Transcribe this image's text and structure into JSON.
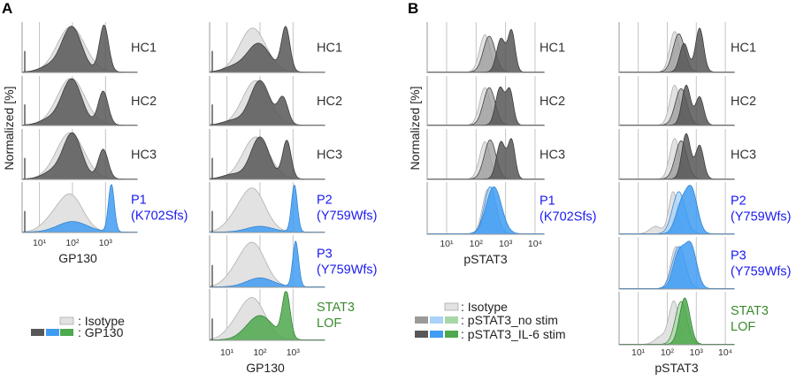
{
  "figure": {
    "panel_letters": [
      "A",
      "B"
    ],
    "ylabel": "Normalized [%]",
    "colors": {
      "isotype": "#e2e2e2",
      "isotype_line": "#a8a8a8",
      "hc_stim": "#575757",
      "hc_nostim": "#9a9a9a",
      "patient_stim": "#3f9cf2",
      "patient_nostim": "#a9d2f8",
      "lof_stim": "#4ea84e",
      "lof_nostim": "#a9d7a6",
      "label_hc": "#333333",
      "label_patient": "#1a1aee",
      "label_lof": "#3b8a2e"
    }
  },
  "legend_a": {
    "items": [
      {
        "text": ": Isotype",
        "swatches": [
          "isotype"
        ]
      },
      {
        "text": ": GP130",
        "swatches": [
          "hc_stim",
          "patient_stim",
          "lof_stim"
        ]
      }
    ]
  },
  "legend_b": {
    "items": [
      {
        "text": ": Isotype",
        "swatches": [
          "isotype"
        ]
      },
      {
        "text": ": pSTAT3_no stim",
        "swatches": [
          "hc_nostim",
          "patient_nostim",
          "lof_nostim"
        ]
      },
      {
        "text": ": pSTAT3_IL-6 stim",
        "swatches": [
          "hc_stim",
          "patient_stim",
          "lof_stim"
        ]
      }
    ]
  },
  "chart_data": [
    {
      "type": "area",
      "panel": "A",
      "xlabel": "GP130",
      "ylabel": "Normalized [%]",
      "xscale": "log",
      "xlim": [
        3,
        9000
      ],
      "xticks": [
        10,
        100,
        1000
      ],
      "xtick_labels": [
        "10¹",
        "10²",
        "10³"
      ],
      "grid": true,
      "rows": [
        {
          "label": [
            "HC1"
          ],
          "label_color": "label_hc",
          "series": [
            {
              "kind": "isotype",
              "peaks": [
                [
                  90,
                  0.95,
                  0.42
                ]
              ]
            },
            {
              "kind": "hc_stim",
              "peaks": [
                [
                  95,
                  0.95,
                  0.3
                ],
                [
                  900,
                  0.98,
                  0.14
                ],
                [
                  20,
                  0.12,
                  0.3
                ]
              ]
            }
          ]
        },
        {
          "label": [
            "HC2"
          ],
          "label_color": "label_hc",
          "series": [
            {
              "kind": "isotype",
              "peaks": [
                [
                  90,
                  1.0,
                  0.42
                ]
              ]
            },
            {
              "kind": "hc_stim",
              "peaks": [
                [
                  95,
                  0.98,
                  0.3
                ],
                [
                  850,
                  0.72,
                  0.15
                ],
                [
                  20,
                  0.12,
                  0.3
                ]
              ]
            }
          ]
        },
        {
          "label": [
            "HC3"
          ],
          "label_color": "label_hc",
          "series": [
            {
              "kind": "isotype",
              "peaks": [
                [
                  85,
                  0.97,
                  0.42
                ]
              ]
            },
            {
              "kind": "hc_stim",
              "peaks": [
                [
                  100,
                  0.95,
                  0.28
                ],
                [
                  850,
                  0.62,
                  0.15
                ],
                [
                  25,
                  0.15,
                  0.3
                ]
              ]
            }
          ]
        },
        {
          "label": [
            "P1",
            "(K702Sfs)"
          ],
          "label_color": "label_patient",
          "series": [
            {
              "kind": "isotype",
              "peaks": [
                [
                  85,
                  0.78,
                  0.38
                ],
                [
                  20,
                  0.15,
                  0.3
                ]
              ]
            },
            {
              "kind": "patient_stim",
              "peaks": [
                [
                  100,
                  0.22,
                  0.45
                ],
                [
                  1500,
                  1.0,
                  0.09
                ]
              ]
            }
          ]
        }
      ]
    },
    {
      "type": "area",
      "panel": "A",
      "xlabel": "GP130",
      "ylabel": "Normalized [%]",
      "xscale": "log",
      "xlim": [
        3,
        9000
      ],
      "xticks": [
        10,
        100,
        1000
      ],
      "xtick_labels": [
        "10¹",
        "10²",
        "10³"
      ],
      "grid": true,
      "rows": [
        {
          "label": [
            "HC1"
          ],
          "label_color": "label_hc",
          "series": [
            {
              "kind": "isotype",
              "peaks": [
                [
                  60,
                  0.92,
                  0.4
                ]
              ]
            },
            {
              "kind": "hc_stim",
              "peaks": [
                [
                  90,
                  0.6,
                  0.35
                ],
                [
                  600,
                  0.92,
                  0.13
                ],
                [
                  15,
                  0.1,
                  0.3
                ]
              ]
            }
          ]
        },
        {
          "label": [
            "HC2"
          ],
          "label_color": "label_hc",
          "series": [
            {
              "kind": "isotype",
              "peaks": [
                [
                  75,
                  0.95,
                  0.4
                ]
              ]
            },
            {
              "kind": "hc_stim",
              "peaks": [
                [
                  100,
                  0.95,
                  0.3
                ],
                [
                  500,
                  0.55,
                  0.15
                ],
                [
                  15,
                  0.1,
                  0.3
                ]
              ]
            }
          ]
        },
        {
          "label": [
            "HC3"
          ],
          "label_color": "label_hc",
          "series": [
            {
              "kind": "isotype",
              "peaks": [
                [
                  75,
                  0.88,
                  0.4
                ]
              ]
            },
            {
              "kind": "hc_stim",
              "peaks": [
                [
                  100,
                  0.88,
                  0.28
                ],
                [
                  650,
                  0.8,
                  0.13
                ],
                [
                  15,
                  0.1,
                  0.3
                ]
              ]
            }
          ]
        },
        {
          "label": [
            "P2",
            "(Y759Wfs)"
          ],
          "label_color": "label_patient",
          "series": [
            {
              "kind": "isotype",
              "peaks": [
                [
                  60,
                  0.9,
                  0.38
                ],
                [
                  15,
                  0.15,
                  0.3
                ]
              ]
            },
            {
              "kind": "patient_stim",
              "peaks": [
                [
                  100,
                  0.12,
                  0.4
                ],
                [
                  1100,
                  0.98,
                  0.09
                ]
              ]
            }
          ]
        },
        {
          "label": [
            "P3",
            "(Y759Wfs)"
          ],
          "label_color": "label_patient",
          "series": [
            {
              "kind": "isotype",
              "peaks": [
                [
                  60,
                  0.88,
                  0.38
                ],
                [
                  15,
                  0.15,
                  0.3
                ]
              ]
            },
            {
              "kind": "patient_stim",
              "peaks": [
                [
                  100,
                  0.18,
                  0.4
                ],
                [
                  1200,
                  0.92,
                  0.09
                ]
              ]
            }
          ]
        },
        {
          "label": [
            "STAT3",
            "LOF"
          ],
          "label_color": "label_lof",
          "series": [
            {
              "kind": "isotype",
              "peaks": [
                [
                  60,
                  0.85,
                  0.38
                ],
                [
                  15,
                  0.15,
                  0.3
                ]
              ]
            },
            {
              "kind": "lof_stim",
              "peaks": [
                [
                  100,
                  0.5,
                  0.4
                ],
                [
                  620,
                  0.95,
                  0.12
                ]
              ]
            }
          ]
        }
      ]
    },
    {
      "type": "area",
      "panel": "B",
      "xlabel": "pSTAT3",
      "ylabel": "Normalized [%]",
      "xscale": "log",
      "xlim": [
        2.2,
        20000
      ],
      "xticks": [
        10,
        100,
        1000,
        10000
      ],
      "xtick_labels": [
        "10¹",
        "10²",
        "10³",
        "10⁴"
      ],
      "grid": true,
      "rows": [
        {
          "label": [
            "HC1"
          ],
          "label_color": "label_hc",
          "series": [
            {
              "kind": "isotype",
              "peaks": [
                [
                  200,
                  0.78,
                  0.18
                ]
              ]
            },
            {
              "kind": "hc_nostim",
              "peaks": [
                [
                  280,
                  0.75,
                  0.2
                ]
              ]
            },
            {
              "kind": "hc_stim",
              "peaks": [
                [
                  700,
                  0.7,
                  0.15
                ],
                [
                  1600,
                  0.85,
                  0.12
                ]
              ]
            }
          ]
        },
        {
          "label": [
            "HC2"
          ],
          "label_color": "label_hc",
          "series": [
            {
              "kind": "isotype",
              "peaks": [
                [
                  200,
                  0.8,
                  0.18
                ]
              ]
            },
            {
              "kind": "hc_nostim",
              "peaks": [
                [
                  280,
                  0.8,
                  0.2
                ]
              ]
            },
            {
              "kind": "hc_stim",
              "peaks": [
                [
                  650,
                  0.8,
                  0.15
                ],
                [
                  1400,
                  0.72,
                  0.12
                ]
              ]
            }
          ]
        },
        {
          "label": [
            "HC3"
          ],
          "label_color": "label_hc",
          "series": [
            {
              "kind": "isotype",
              "peaks": [
                [
                  200,
                  0.78,
                  0.18
                ]
              ]
            },
            {
              "kind": "hc_nostim",
              "peaks": [
                [
                  300,
                  0.82,
                  0.2
                ]
              ]
            },
            {
              "kind": "hc_stim",
              "peaks": [
                [
                  700,
                  0.78,
                  0.15
                ],
                [
                  1600,
                  0.8,
                  0.12
                ]
              ]
            }
          ]
        },
        {
          "label": [
            "P1",
            "(K702Sfs)"
          ],
          "label_color": "label_patient",
          "series": [
            {
              "kind": "isotype",
              "peaks": [
                [
                  250,
                  0.9,
                  0.18
                ]
              ]
            },
            {
              "kind": "patient_nostim",
              "peaks": [
                [
                  300,
                  0.95,
                  0.2
                ]
              ]
            },
            {
              "kind": "patient_stim",
              "peaks": [
                [
                  400,
                  0.95,
                  0.26
                ]
              ]
            }
          ]
        }
      ]
    },
    {
      "type": "area",
      "panel": "B",
      "xlabel": "pSTAT3",
      "ylabel": "Normalized [%]",
      "xscale": "log",
      "xlim": [
        2.2,
        20000
      ],
      "xticks": [
        10,
        100,
        1000,
        10000
      ],
      "xtick_labels": [
        "10¹",
        "10²",
        "10³",
        "10⁴"
      ],
      "grid": true,
      "rows": [
        {
          "label": [
            "HC1"
          ],
          "label_color": "label_hc",
          "series": [
            {
              "kind": "isotype",
              "peaks": [
                [
                  180,
                  0.85,
                  0.17
                ]
              ]
            },
            {
              "kind": "hc_nostim",
              "peaks": [
                [
                  250,
                  0.8,
                  0.2
                ]
              ]
            },
            {
              "kind": "hc_stim",
              "peaks": [
                [
                  380,
                  0.6,
                  0.15
                ],
                [
                  1300,
                  0.92,
                  0.14
                ]
              ]
            }
          ]
        },
        {
          "label": [
            "HC2"
          ],
          "label_color": "label_hc",
          "series": [
            {
              "kind": "isotype",
              "peaks": [
                [
                  180,
                  0.85,
                  0.17
                ]
              ]
            },
            {
              "kind": "hc_nostim",
              "peaks": [
                [
                  300,
                  0.78,
                  0.2
                ]
              ]
            },
            {
              "kind": "hc_stim",
              "peaks": [
                [
                  450,
                  0.85,
                  0.15
                ],
                [
                  1300,
                  0.6,
                  0.14
                ]
              ]
            }
          ]
        },
        {
          "label": [
            "HC3"
          ],
          "label_color": "label_hc",
          "series": [
            {
              "kind": "isotype",
              "peaks": [
                [
                  180,
                  0.85,
                  0.17
                ]
              ]
            },
            {
              "kind": "hc_nostim",
              "peaks": [
                [
                  300,
                  0.8,
                  0.2
                ]
              ]
            },
            {
              "kind": "hc_stim",
              "peaks": [
                [
                  450,
                  0.95,
                  0.15
                ],
                [
                  1300,
                  0.7,
                  0.14
                ]
              ]
            }
          ]
        },
        {
          "label": [
            "P2",
            "(Y759Wfs)"
          ],
          "label_color": "label_patient",
          "series": [
            {
              "kind": "isotype",
              "peaks": [
                [
                  160,
                  0.85,
                  0.15
                ],
                [
                  40,
                  0.15,
                  0.2
                ]
              ]
            },
            {
              "kind": "patient_nostim",
              "peaks": [
                [
                  250,
                  0.85,
                  0.22
                ]
              ]
            },
            {
              "kind": "patient_stim",
              "peaks": [
                [
                  300,
                  0.55,
                  0.2
                ],
                [
                  700,
                  0.85,
                  0.2
                ]
              ]
            }
          ]
        },
        {
          "label": [
            "P3",
            "(Y759Wfs)"
          ],
          "label_color": "label_patient",
          "series": [
            {
              "kind": "isotype",
              "peaks": [
                [
                  200,
                  0.85,
                  0.18
                ]
              ]
            },
            {
              "kind": "patient_nostim",
              "peaks": [
                [
                  250,
                  0.85,
                  0.22
                ]
              ]
            },
            {
              "kind": "patient_stim",
              "peaks": [
                [
                  250,
                  0.7,
                  0.2
                ],
                [
                  650,
                  0.85,
                  0.2
                ]
              ]
            }
          ]
        },
        {
          "label": [
            "STAT3",
            "LOF"
          ],
          "label_color": "label_lof",
          "series": [
            {
              "kind": "isotype",
              "peaks": [
                [
                  170,
                  0.85,
                  0.17
                ],
                [
                  60,
                  0.15,
                  0.2
                ]
              ]
            },
            {
              "kind": "lof_nostim",
              "peaks": [
                [
                  300,
                  0.85,
                  0.2
                ]
              ]
            },
            {
              "kind": "lof_stim",
              "peaks": [
                [
                  400,
                  0.92,
                  0.18
                ]
              ]
            }
          ]
        }
      ]
    }
  ]
}
